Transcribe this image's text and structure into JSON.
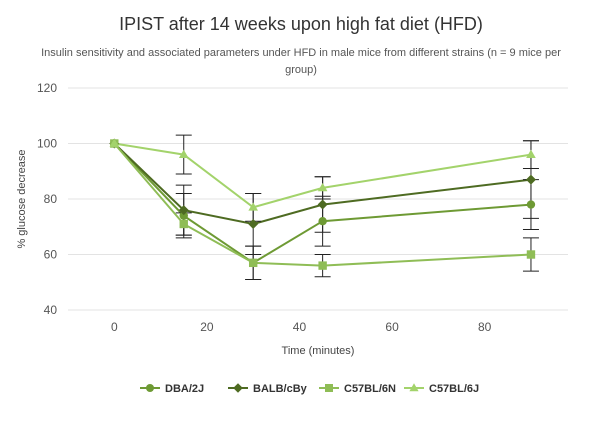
{
  "chart_data": {
    "type": "line",
    "title": "IPIST after 14 weeks upon high fat diet (HFD)",
    "subtitle": "Insulin sensitivity and associated parameters under HFD in male mice from different strains (n = 9 mice per group)",
    "xlabel": "Time (minutes)",
    "ylabel": "% glucose decrease",
    "xlim": [
      -10,
      98
    ],
    "ylim": [
      40,
      120
    ],
    "x_ticks": [
      0,
      20,
      40,
      60,
      80
    ],
    "y_ticks": [
      40,
      60,
      80,
      100,
      120
    ],
    "grid": "horizontal",
    "legend_position": "bottom",
    "x": [
      0,
      15,
      30,
      45,
      90
    ],
    "series": [
      {
        "name": "DBA/2J",
        "color": "#6e9a34",
        "marker": "circle",
        "values": [
          100,
          74,
          57,
          72,
          78
        ],
        "error": [
          0,
          8,
          6,
          9,
          9
        ]
      },
      {
        "name": "BALB/cBy",
        "color": "#4e6b22",
        "marker": "diamond",
        "values": [
          100,
          76,
          71,
          78,
          87
        ],
        "error": [
          0,
          9,
          11,
          10,
          14
        ]
      },
      {
        "name": "C57BL/6N",
        "color": "#8fbd56",
        "marker": "square",
        "values": [
          100,
          71,
          57,
          56,
          60
        ],
        "error": [
          0,
          4,
          6,
          4,
          6
        ]
      },
      {
        "name": "C57BL/6J",
        "color": "#a3d36b",
        "marker": "triangle",
        "values": [
          100,
          96,
          77,
          84,
          96
        ],
        "error": [
          0,
          7,
          5,
          4,
          5
        ]
      }
    ]
  }
}
